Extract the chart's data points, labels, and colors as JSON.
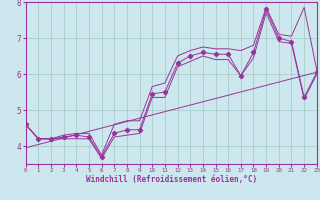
{
  "xlabel": "Windchill (Refroidissement éolien,°C)",
  "bg_color": "#cce8ee",
  "grid_color": "#aacccc",
  "line_color": "#993399",
  "x_values": [
    0,
    1,
    2,
    3,
    4,
    5,
    6,
    7,
    8,
    9,
    10,
    11,
    12,
    13,
    14,
    15,
    16,
    17,
    18,
    19,
    20,
    21,
    22,
    23
  ],
  "main_y": [
    4.6,
    4.2,
    4.2,
    4.25,
    4.3,
    4.25,
    3.7,
    4.35,
    4.45,
    4.45,
    5.45,
    5.5,
    6.3,
    6.5,
    6.6,
    6.55,
    6.55,
    5.95,
    6.6,
    7.8,
    7.0,
    6.9,
    5.35,
    6.05
  ],
  "upper_y": [
    4.6,
    4.2,
    4.2,
    4.3,
    4.35,
    4.35,
    3.75,
    4.6,
    4.7,
    4.7,
    5.65,
    5.75,
    6.5,
    6.65,
    6.75,
    6.7,
    6.7,
    6.65,
    6.8,
    7.85,
    7.1,
    7.05,
    7.85,
    6.1
  ],
  "lower_y": [
    4.6,
    4.2,
    4.2,
    4.2,
    4.2,
    4.2,
    3.65,
    4.25,
    4.3,
    4.35,
    5.35,
    5.35,
    6.2,
    6.35,
    6.5,
    6.4,
    6.4,
    5.95,
    6.45,
    7.7,
    6.9,
    6.85,
    5.3,
    6.0
  ],
  "trend_x": [
    0,
    23
  ],
  "trend_y": [
    3.95,
    6.05
  ],
  "ylim": [
    3.5,
    8.0
  ],
  "xlim": [
    0,
    23
  ],
  "yticks": [
    4,
    5,
    6,
    7,
    8
  ],
  "xticks": [
    0,
    1,
    2,
    3,
    4,
    5,
    6,
    7,
    8,
    9,
    10,
    11,
    12,
    13,
    14,
    15,
    16,
    17,
    18,
    19,
    20,
    21,
    22,
    23
  ]
}
